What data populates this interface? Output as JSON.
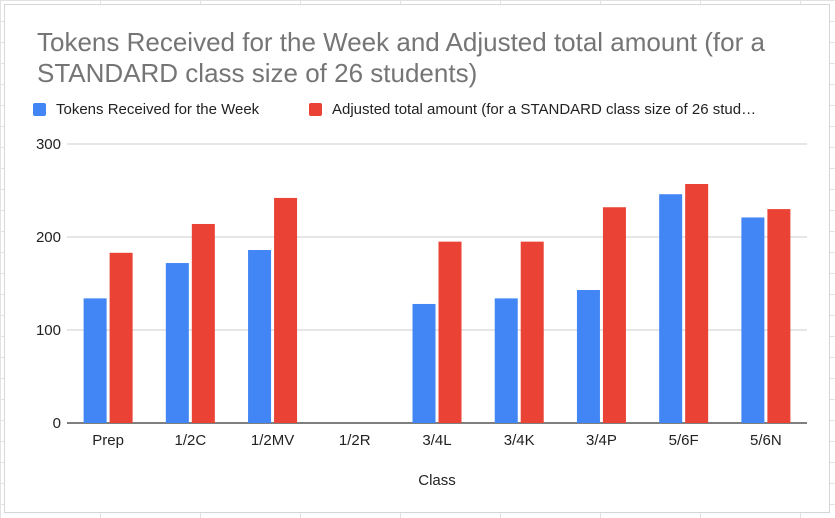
{
  "chart_data": {
    "type": "bar",
    "title": "Tokens Received for the Week and Adjusted total amount (for a STANDARD class size of 26 students)",
    "xlabel": "Class",
    "ylabel": "",
    "ylim": [
      0,
      300
    ],
    "yticks": [
      0,
      100,
      200,
      300
    ],
    "grid": true,
    "legend_position": "top",
    "categories": [
      "Prep",
      "1/2C",
      "1/2MV",
      "1/2R",
      "3/4L",
      "3/4K",
      "3/4P",
      "5/6F",
      "5/6N"
    ],
    "series": [
      {
        "name": "Tokens Received for the Week",
        "color": "#4285f4",
        "values": [
          134,
          172,
          186,
          null,
          128,
          134,
          143,
          246,
          221
        ]
      },
      {
        "name": "Adjusted total amount (for a STANDARD class size of 26 stud…",
        "color": "#ea4335",
        "values": [
          183,
          214,
          242,
          null,
          195,
          195,
          232,
          257,
          230
        ]
      }
    ]
  }
}
